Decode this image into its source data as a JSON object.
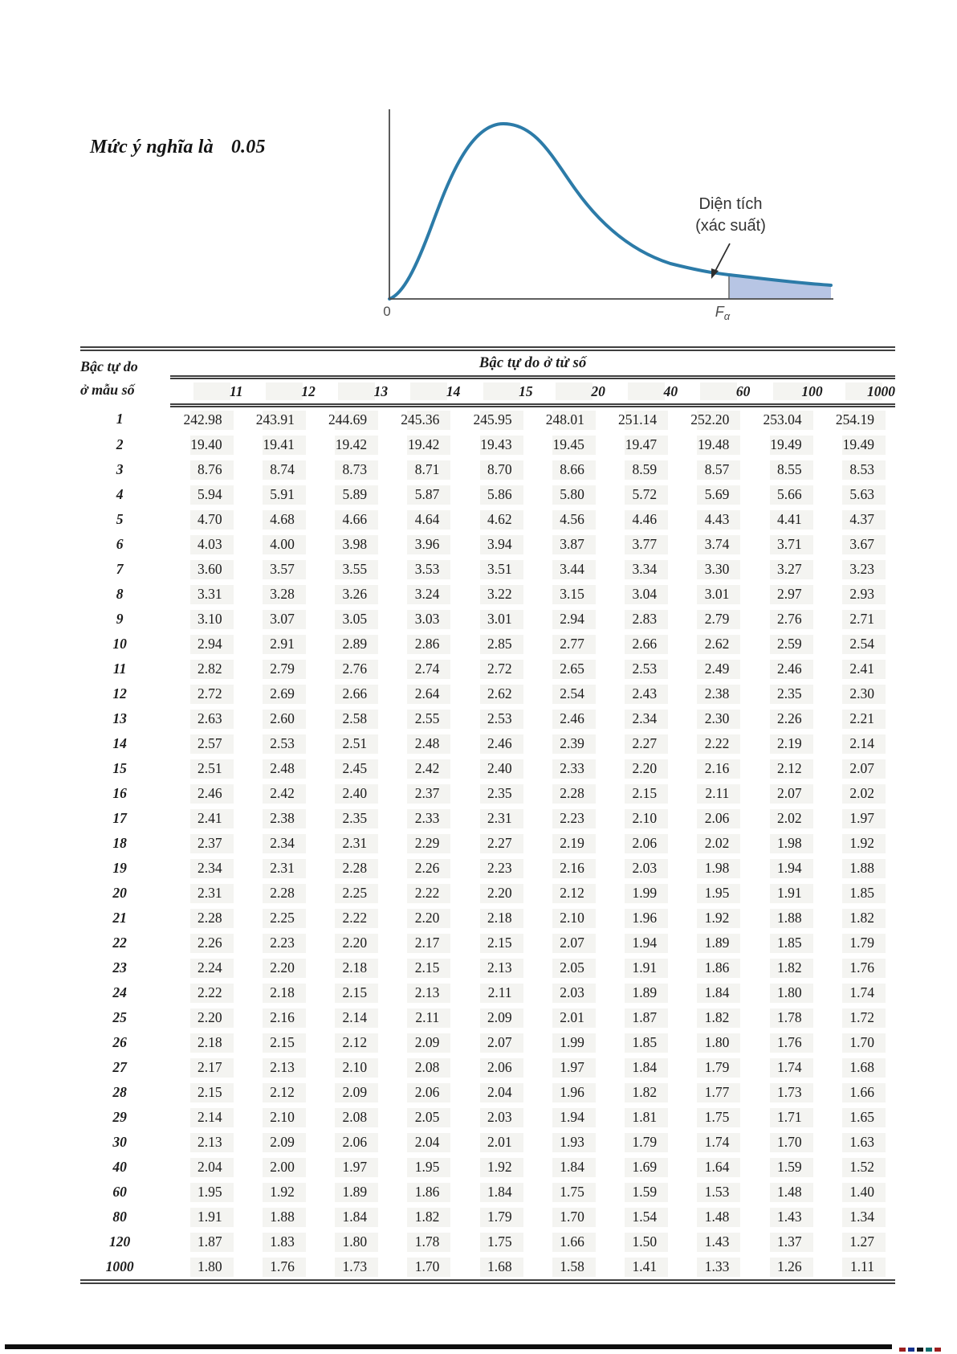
{
  "title": {
    "text": "Mức ý nghĩa là",
    "value": "0.05"
  },
  "chart": {
    "area_label_line1": "Diện tích",
    "area_label_line2": "(xác suất)",
    "origin_label": "0",
    "critical_label": "F",
    "critical_label_sub": "α",
    "curve_color": "#2c7ba8",
    "shade_color": "#b7c5e4",
    "axis_color": "#4a4a4a"
  },
  "table": {
    "row_header_line1": "Bậc tự do",
    "row_header_line2": "ở mẫu số",
    "col_group_header": "Bậc tự do ở tử số",
    "columns": [
      "11",
      "12",
      "13",
      "14",
      "15",
      "20",
      "40",
      "60",
      "100",
      "1000"
    ],
    "rows": [
      {
        "df": "1",
        "values": [
          "242.98",
          "243.91",
          "244.69",
          "245.36",
          "245.95",
          "248.01",
          "251.14",
          "252.20",
          "253.04",
          "254.19"
        ]
      },
      {
        "df": "2",
        "values": [
          "19.40",
          "19.41",
          "19.42",
          "19.42",
          "19.43",
          "19.45",
          "19.47",
          "19.48",
          "19.49",
          "19.49"
        ]
      },
      {
        "df": "3",
        "values": [
          "8.76",
          "8.74",
          "8.73",
          "8.71",
          "8.70",
          "8.66",
          "8.59",
          "8.57",
          "8.55",
          "8.53"
        ]
      },
      {
        "df": "4",
        "values": [
          "5.94",
          "5.91",
          "5.89",
          "5.87",
          "5.86",
          "5.80",
          "5.72",
          "5.69",
          "5.66",
          "5.63"
        ]
      },
      {
        "df": "5",
        "values": [
          "4.70",
          "4.68",
          "4.66",
          "4.64",
          "4.62",
          "4.56",
          "4.46",
          "4.43",
          "4.41",
          "4.37"
        ]
      },
      {
        "df": "6",
        "values": [
          "4.03",
          "4.00",
          "3.98",
          "3.96",
          "3.94",
          "3.87",
          "3.77",
          "3.74",
          "3.71",
          "3.67"
        ]
      },
      {
        "df": "7",
        "values": [
          "3.60",
          "3.57",
          "3.55",
          "3.53",
          "3.51",
          "3.44",
          "3.34",
          "3.30",
          "3.27",
          "3.23"
        ]
      },
      {
        "df": "8",
        "values": [
          "3.31",
          "3.28",
          "3.26",
          "3.24",
          "3.22",
          "3.15",
          "3.04",
          "3.01",
          "2.97",
          "2.93"
        ]
      },
      {
        "df": "9",
        "values": [
          "3.10",
          "3.07",
          "3.05",
          "3.03",
          "3.01",
          "2.94",
          "2.83",
          "2.79",
          "2.76",
          "2.71"
        ]
      },
      {
        "df": "10",
        "values": [
          "2.94",
          "2.91",
          "2.89",
          "2.86",
          "2.85",
          "2.77",
          "2.66",
          "2.62",
          "2.59",
          "2.54"
        ]
      },
      {
        "df": "11",
        "values": [
          "2.82",
          "2.79",
          "2.76",
          "2.74",
          "2.72",
          "2.65",
          "2.53",
          "2.49",
          "2.46",
          "2.41"
        ]
      },
      {
        "df": "12",
        "values": [
          "2.72",
          "2.69",
          "2.66",
          "2.64",
          "2.62",
          "2.54",
          "2.43",
          "2.38",
          "2.35",
          "2.30"
        ]
      },
      {
        "df": "13",
        "values": [
          "2.63",
          "2.60",
          "2.58",
          "2.55",
          "2.53",
          "2.46",
          "2.34",
          "2.30",
          "2.26",
          "2.21"
        ]
      },
      {
        "df": "14",
        "values": [
          "2.57",
          "2.53",
          "2.51",
          "2.48",
          "2.46",
          "2.39",
          "2.27",
          "2.22",
          "2.19",
          "2.14"
        ]
      },
      {
        "df": "15",
        "values": [
          "2.51",
          "2.48",
          "2.45",
          "2.42",
          "2.40",
          "2.33",
          "2.20",
          "2.16",
          "2.12",
          "2.07"
        ]
      },
      {
        "df": "16",
        "values": [
          "2.46",
          "2.42",
          "2.40",
          "2.37",
          "2.35",
          "2.28",
          "2.15",
          "2.11",
          "2.07",
          "2.02"
        ]
      },
      {
        "df": "17",
        "values": [
          "2.41",
          "2.38",
          "2.35",
          "2.33",
          "2.31",
          "2.23",
          "2.10",
          "2.06",
          "2.02",
          "1.97"
        ]
      },
      {
        "df": "18",
        "values": [
          "2.37",
          "2.34",
          "2.31",
          "2.29",
          "2.27",
          "2.19",
          "2.06",
          "2.02",
          "1.98",
          "1.92"
        ]
      },
      {
        "df": "19",
        "values": [
          "2.34",
          "2.31",
          "2.28",
          "2.26",
          "2.23",
          "2.16",
          "2.03",
          "1.98",
          "1.94",
          "1.88"
        ]
      },
      {
        "df": "20",
        "values": [
          "2.31",
          "2.28",
          "2.25",
          "2.22",
          "2.20",
          "2.12",
          "1.99",
          "1.95",
          "1.91",
          "1.85"
        ]
      },
      {
        "df": "21",
        "values": [
          "2.28",
          "2.25",
          "2.22",
          "2.20",
          "2.18",
          "2.10",
          "1.96",
          "1.92",
          "1.88",
          "1.82"
        ]
      },
      {
        "df": "22",
        "values": [
          "2.26",
          "2.23",
          "2.20",
          "2.17",
          "2.15",
          "2.07",
          "1.94",
          "1.89",
          "1.85",
          "1.79"
        ]
      },
      {
        "df": "23",
        "values": [
          "2.24",
          "2.20",
          "2.18",
          "2.15",
          "2.13",
          "2.05",
          "1.91",
          "1.86",
          "1.82",
          "1.76"
        ]
      },
      {
        "df": "24",
        "values": [
          "2.22",
          "2.18",
          "2.15",
          "2.13",
          "2.11",
          "2.03",
          "1.89",
          "1.84",
          "1.80",
          "1.74"
        ]
      },
      {
        "df": "25",
        "values": [
          "2.20",
          "2.16",
          "2.14",
          "2.11",
          "2.09",
          "2.01",
          "1.87",
          "1.82",
          "1.78",
          "1.72"
        ]
      },
      {
        "df": "26",
        "values": [
          "2.18",
          "2.15",
          "2.12",
          "2.09",
          "2.07",
          "1.99",
          "1.85",
          "1.80",
          "1.76",
          "1.70"
        ]
      },
      {
        "df": "27",
        "values": [
          "2.17",
          "2.13",
          "2.10",
          "2.08",
          "2.06",
          "1.97",
          "1.84",
          "1.79",
          "1.74",
          "1.68"
        ]
      },
      {
        "df": "28",
        "values": [
          "2.15",
          "2.12",
          "2.09",
          "2.06",
          "2.04",
          "1.96",
          "1.82",
          "1.77",
          "1.73",
          "1.66"
        ]
      },
      {
        "df": "29",
        "values": [
          "2.14",
          "2.10",
          "2.08",
          "2.05",
          "2.03",
          "1.94",
          "1.81",
          "1.75",
          "1.71",
          "1.65"
        ]
      },
      {
        "df": "30",
        "values": [
          "2.13",
          "2.09",
          "2.06",
          "2.04",
          "2.01",
          "1.93",
          "1.79",
          "1.74",
          "1.70",
          "1.63"
        ]
      },
      {
        "df": "40",
        "values": [
          "2.04",
          "2.00",
          "1.97",
          "1.95",
          "1.92",
          "1.84",
          "1.69",
          "1.64",
          "1.59",
          "1.52"
        ]
      },
      {
        "df": "60",
        "values": [
          "1.95",
          "1.92",
          "1.89",
          "1.86",
          "1.84",
          "1.75",
          "1.59",
          "1.53",
          "1.48",
          "1.40"
        ]
      },
      {
        "df": "80",
        "values": [
          "1.91",
          "1.88",
          "1.84",
          "1.82",
          "1.79",
          "1.70",
          "1.54",
          "1.48",
          "1.43",
          "1.34"
        ]
      },
      {
        "df": "120",
        "values": [
          "1.87",
          "1.83",
          "1.80",
          "1.78",
          "1.75",
          "1.66",
          "1.50",
          "1.43",
          "1.37",
          "1.27"
        ]
      },
      {
        "df": "1000",
        "values": [
          "1.80",
          "1.76",
          "1.73",
          "1.70",
          "1.68",
          "1.58",
          "1.41",
          "1.33",
          "1.26",
          "1.11"
        ]
      }
    ]
  },
  "footer": {
    "bar_color": "#0d0d0d",
    "corner_mark_colors": [
      "#9c1f1f",
      "#14328f",
      "#141414",
      "#0b6e6e",
      "#9c1f1f"
    ]
  }
}
